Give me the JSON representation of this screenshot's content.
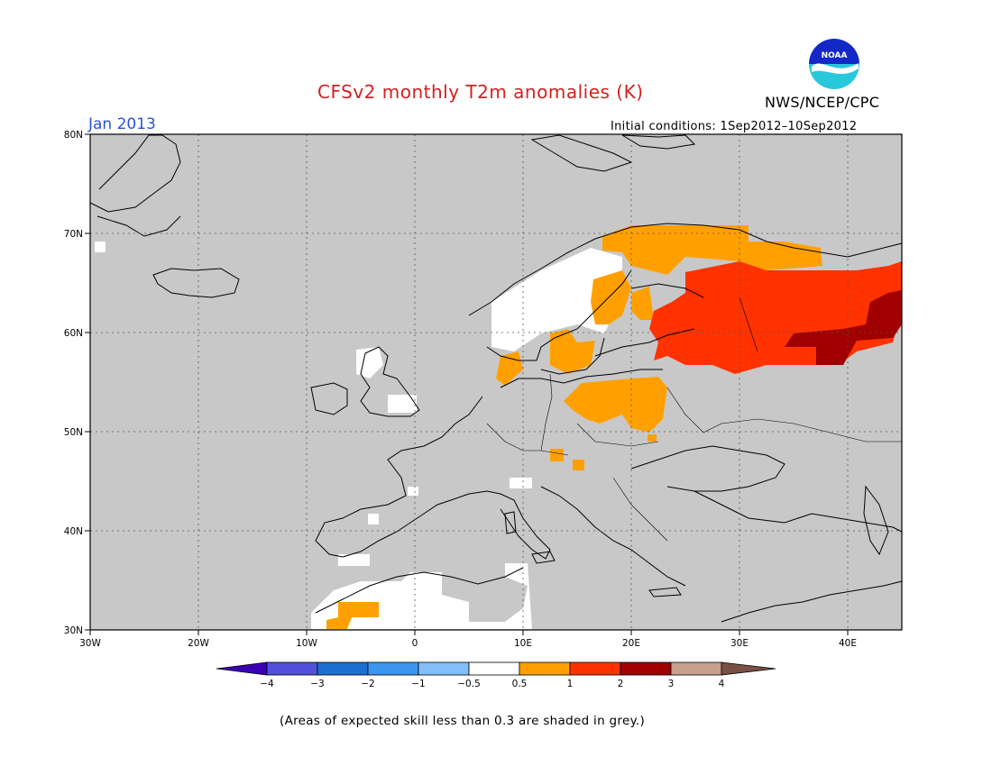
{
  "header": {
    "title": "CFSv2 monthly T2m anomalies (K)",
    "month": "Jan 2013",
    "initial_conditions": "Initial conditions: 1Sep2012–10Sep2012",
    "agency": "NWS/NCEP/CPC",
    "logo_text": "NOAA"
  },
  "map": {
    "lat_labels": [
      "80N",
      "70N",
      "60N",
      "50N",
      "40N",
      "30N"
    ],
    "lon_labels": [
      "30W",
      "20W",
      "10W",
      "0",
      "10E",
      "20E",
      "30E",
      "40E"
    ],
    "background_color": "#c8c8c8"
  },
  "colorbar": {
    "labels": [
      "−4",
      "−3",
      "−2",
      "−1",
      "−0.5",
      "0.5",
      "1",
      "2",
      "3",
      "4"
    ],
    "colors": [
      "#3c00b4",
      "#5050dc",
      "#1e6ed2",
      "#3c96f0",
      "#82befa",
      "#ffffff",
      "#ffa000",
      "#ff3200",
      "#a00000",
      "#c8a090",
      "#785046"
    ]
  },
  "caption": "(Areas of expected skill less than 0.3 are shaded in grey.)"
}
